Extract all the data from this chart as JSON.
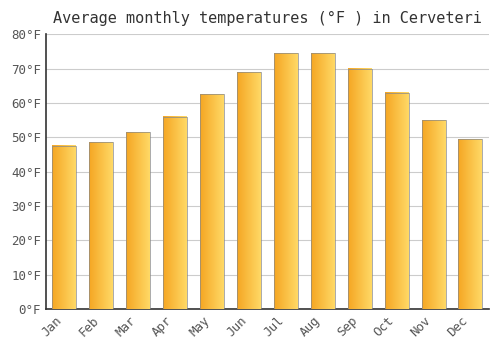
{
  "title": "Average monthly temperatures (°F ) in Cerveteri",
  "months": [
    "Jan",
    "Feb",
    "Mar",
    "Apr",
    "May",
    "Jun",
    "Jul",
    "Aug",
    "Sep",
    "Oct",
    "Nov",
    "Dec"
  ],
  "values": [
    47.5,
    48.5,
    51.5,
    56,
    62.5,
    69,
    74.5,
    74.5,
    70,
    63,
    55,
    49.5
  ],
  "bar_color_left": "#F5A623",
  "bar_color_right": "#FFD966",
  "bar_edge_color": "#888888",
  "background_color": "#FFFFFF",
  "grid_color": "#CCCCCC",
  "text_color": "#555555",
  "title_color": "#333333",
  "ylim": [
    0,
    80
  ],
  "yticks": [
    0,
    10,
    20,
    30,
    40,
    50,
    60,
    70,
    80
  ],
  "title_fontsize": 11,
  "tick_fontsize": 9,
  "font_family": "monospace"
}
